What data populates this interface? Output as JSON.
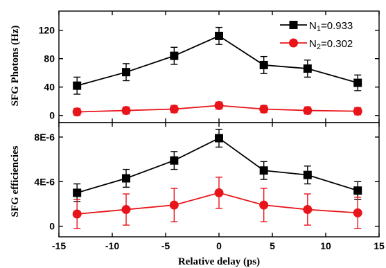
{
  "chart_data": [
    {
      "type": "line",
      "ylabel": "SFG Photons (Hz)",
      "ylim": [
        -10,
        147
      ],
      "yticks": [
        0,
        40,
        80,
        120
      ],
      "ytick_labels": [
        "0",
        "40",
        "80",
        "120"
      ],
      "xlim": [
        -15,
        15
      ],
      "legend_position": "top-right",
      "series": [
        {
          "name_main": "N",
          "name_sub": "1",
          "name_rest": "=0.933",
          "color": "#000000",
          "marker": "square",
          "x": [
            -13.3,
            -8.7,
            -4.2,
            0,
            4.2,
            8.3,
            13
          ],
          "y": [
            42,
            61,
            84,
            112,
            71,
            66,
            46
          ],
          "err": [
            12,
            12,
            12,
            12,
            12,
            12,
            11
          ]
        },
        {
          "name_main": "N",
          "name_sub": "2",
          "name_rest": "=0.302",
          "color": "#e8141a",
          "marker": "circle",
          "x": [
            -13.3,
            -8.7,
            -4.2,
            0,
            4.2,
            8.3,
            13
          ],
          "y": [
            5,
            7,
            9,
            14,
            9,
            7,
            6
          ],
          "err": [
            5,
            5,
            5,
            5,
            5,
            5,
            5
          ]
        }
      ]
    },
    {
      "type": "line",
      "ylabel": "SFG efficiencies",
      "ylim": [
        -9.5e-07,
        9.3e-06
      ],
      "yticks": [
        0,
        4e-06,
        8e-06
      ],
      "ytick_labels": [
        "0",
        "4E-6",
        "8E-6"
      ],
      "xlabel": "Relative delay (ps)",
      "xlim": [
        -15,
        15
      ],
      "xticks": [
        -15,
        -10,
        -5,
        0,
        5,
        10,
        15
      ],
      "xtick_labels": [
        "-15",
        "-10",
        "-5",
        "0",
        "5",
        "10",
        "15"
      ],
      "series": [
        {
          "color": "#000000",
          "marker": "square",
          "x": [
            -13.3,
            -8.7,
            -4.2,
            0,
            4.2,
            8.3,
            13
          ],
          "y": [
            3e-06,
            4.3e-06,
            5.9e-06,
            7.9e-06,
            5e-06,
            4.6e-06,
            3.2e-06
          ],
          "err": [
            8e-07,
            8e-07,
            8e-07,
            8e-07,
            8e-07,
            8e-07,
            8e-07
          ]
        },
        {
          "color": "#e8141a",
          "marker": "circle",
          "x": [
            -13.3,
            -8.7,
            -4.2,
            0,
            4.2,
            8.3,
            13
          ],
          "y": [
            1.1e-06,
            1.5e-06,
            1.9e-06,
            3e-06,
            1.9e-06,
            1.5e-06,
            1.2e-06
          ],
          "err": [
            1.3e-06,
            1.4e-06,
            1.5e-06,
            1.4e-06,
            1.5e-06,
            1.4e-06,
            1.4e-06
          ]
        }
      ]
    }
  ]
}
